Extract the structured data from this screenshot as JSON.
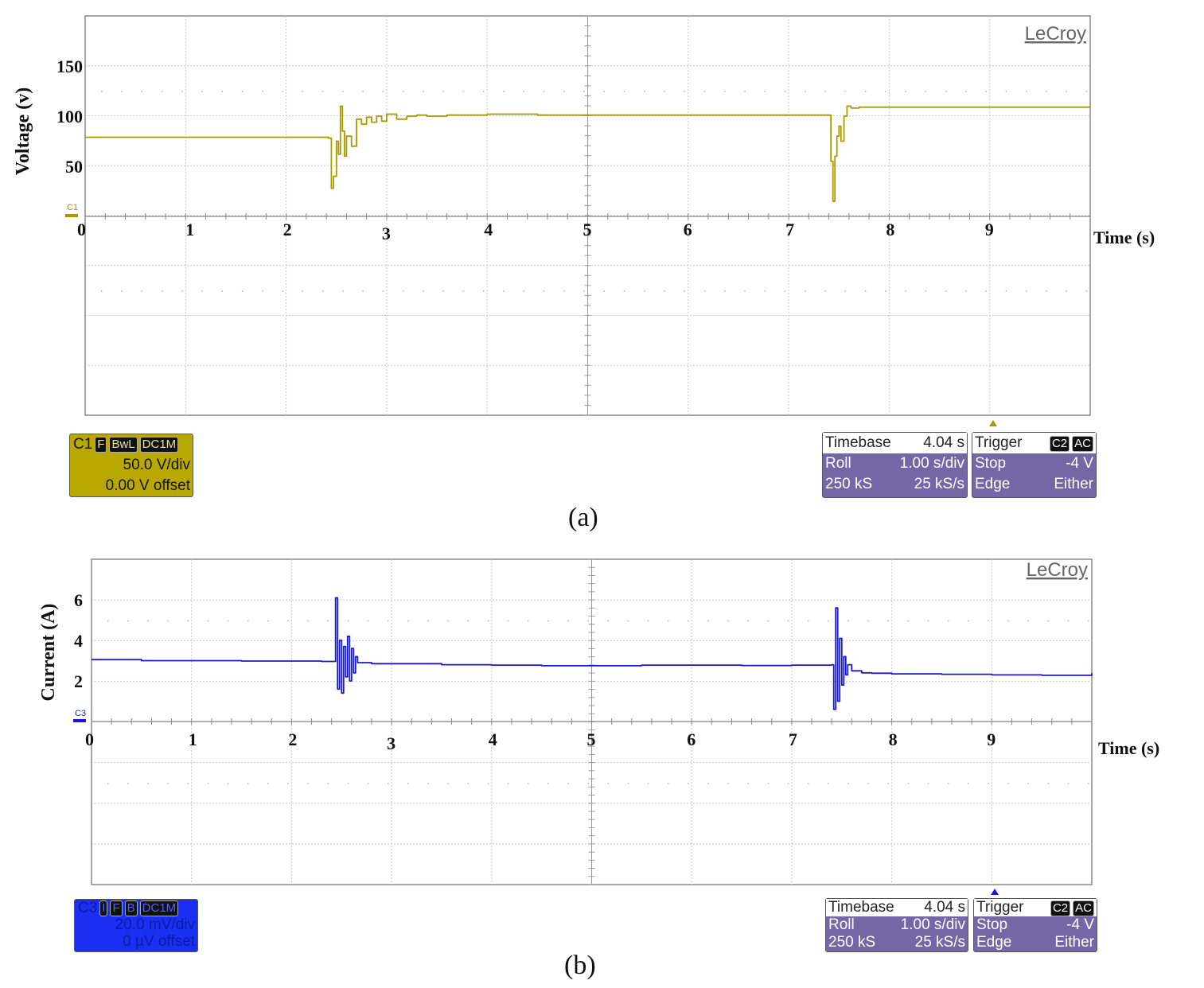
{
  "panels": [
    {
      "id": "a",
      "caption": "(a)",
      "brand": "LeCroy",
      "channel_marker": "C1",
      "trace_color": "#a89a00",
      "channel_info": {
        "name": "C1",
        "badges": [
          "F",
          "BwL",
          "DC1M"
        ],
        "scale": "50.0 V/div",
        "offset": "0.00 V offset"
      },
      "timebase": {
        "label": "Timebase",
        "value": "4.04 s",
        "mode": "Roll",
        "mode_value": "1.00 s/div",
        "samples": "250 kS",
        "rate": "25 kS/s"
      },
      "trigger": {
        "label": "Trigger",
        "badges": [
          "C2",
          "AC"
        ],
        "state": "Stop",
        "level": "-4 V",
        "type": "Edge",
        "slope": "Either"
      }
    },
    {
      "id": "b",
      "caption": "(b)",
      "brand": "LeCroy",
      "channel_marker": "C3",
      "trace_color": "#1a1acc",
      "channel_info": {
        "name": "C3",
        "badges": [
          "I",
          "F",
          "B",
          "DC1M"
        ],
        "scale": "20.0 mV/div",
        "offset": "0 µV offset"
      },
      "timebase": {
        "label": "Timebase",
        "value": "4.04 s",
        "mode": "Roll",
        "mode_value": "1.00 s/div",
        "samples": "250 kS",
        "rate": "25 kS/s"
      },
      "trigger": {
        "label": "Trigger",
        "badges": [
          "C2",
          "AC"
        ],
        "state": "Stop",
        "level": "-4 V",
        "type": "Edge",
        "slope": "Either"
      }
    }
  ],
  "chart_data": [
    {
      "type": "line",
      "xlabel": "Time (s)",
      "ylabel": "Voltage (v)",
      "x_ticks": [
        "0",
        "1",
        "2",
        "3",
        "4",
        "5",
        "6",
        "7",
        "8",
        "9"
      ],
      "y_ticks": [
        "150",
        "100",
        "50"
      ],
      "xlim": [
        0,
        10
      ],
      "ylim": [
        0,
        200
      ],
      "grid": true,
      "series": [
        {
          "x": [
            0,
            0.5,
            1,
            1.5,
            2,
            2.3,
            2.42,
            2.45,
            2.47,
            2.5,
            2.52,
            2.54,
            2.56,
            2.58,
            2.6,
            2.65,
            2.7,
            2.75,
            2.8,
            2.85,
            2.9,
            2.95,
            3,
            3.1,
            3.2,
            3.3,
            3.4,
            3.6,
            3.8,
            4,
            4.5,
            5,
            5.5,
            6,
            6.5,
            7,
            7.3,
            7.4,
            7.42,
            7.44,
            7.46,
            7.48,
            7.5,
            7.52,
            7.55,
            7.58,
            7.62,
            7.7,
            8,
            8.5,
            9,
            9.5,
            10
          ],
          "y": [
            79,
            79,
            79,
            79,
            79,
            79,
            78,
            28,
            40,
            75,
            62,
            110,
            85,
            60,
            80,
            70,
            97,
            92,
            99,
            94,
            100,
            95,
            102,
            97,
            100,
            101,
            100,
            101,
            101,
            102,
            101,
            101,
            101,
            101,
            101,
            101,
            101,
            101,
            55,
            15,
            60,
            80,
            90,
            75,
            100,
            110,
            108,
            109,
            109,
            109,
            109,
            109,
            109
          ]
        }
      ]
    },
    {
      "type": "line",
      "xlabel": "Time (s)",
      "ylabel": "Current (A)",
      "x_ticks": [
        "0",
        "1",
        "2",
        "3",
        "4",
        "5",
        "6",
        "7",
        "8",
        "9"
      ],
      "y_ticks": [
        "6",
        "4",
        "2"
      ],
      "xlim": [
        0,
        10
      ],
      "ylim": [
        0,
        8
      ],
      "grid": true,
      "series": [
        {
          "x": [
            0,
            0.5,
            1,
            1.5,
            2,
            2.3,
            2.42,
            2.44,
            2.46,
            2.48,
            2.5,
            2.52,
            2.54,
            2.56,
            2.58,
            2.6,
            2.62,
            2.64,
            2.66,
            2.7,
            2.8,
            3,
            3.5,
            4,
            4.5,
            5,
            5.5,
            6,
            6.5,
            7,
            7.3,
            7.4,
            7.42,
            7.44,
            7.46,
            7.48,
            7.5,
            7.52,
            7.54,
            7.56,
            7.6,
            7.7,
            7.8,
            8,
            8.5,
            9,
            9.5,
            10
          ],
          "y": [
            3.05,
            3.0,
            3.0,
            2.98,
            2.98,
            2.96,
            2.96,
            6.1,
            1.6,
            4.0,
            1.4,
            3.7,
            2.2,
            4.2,
            2.0,
            3.6,
            2.4,
            3.2,
            2.9,
            2.9,
            2.85,
            2.85,
            2.8,
            2.78,
            2.75,
            2.75,
            2.78,
            2.78,
            2.76,
            2.78,
            2.78,
            2.8,
            0.6,
            5.6,
            1.0,
            4.1,
            1.8,
            3.2,
            2.3,
            2.8,
            2.5,
            2.4,
            2.38,
            2.35,
            2.33,
            2.3,
            2.28,
            2.38
          ]
        }
      ]
    }
  ]
}
